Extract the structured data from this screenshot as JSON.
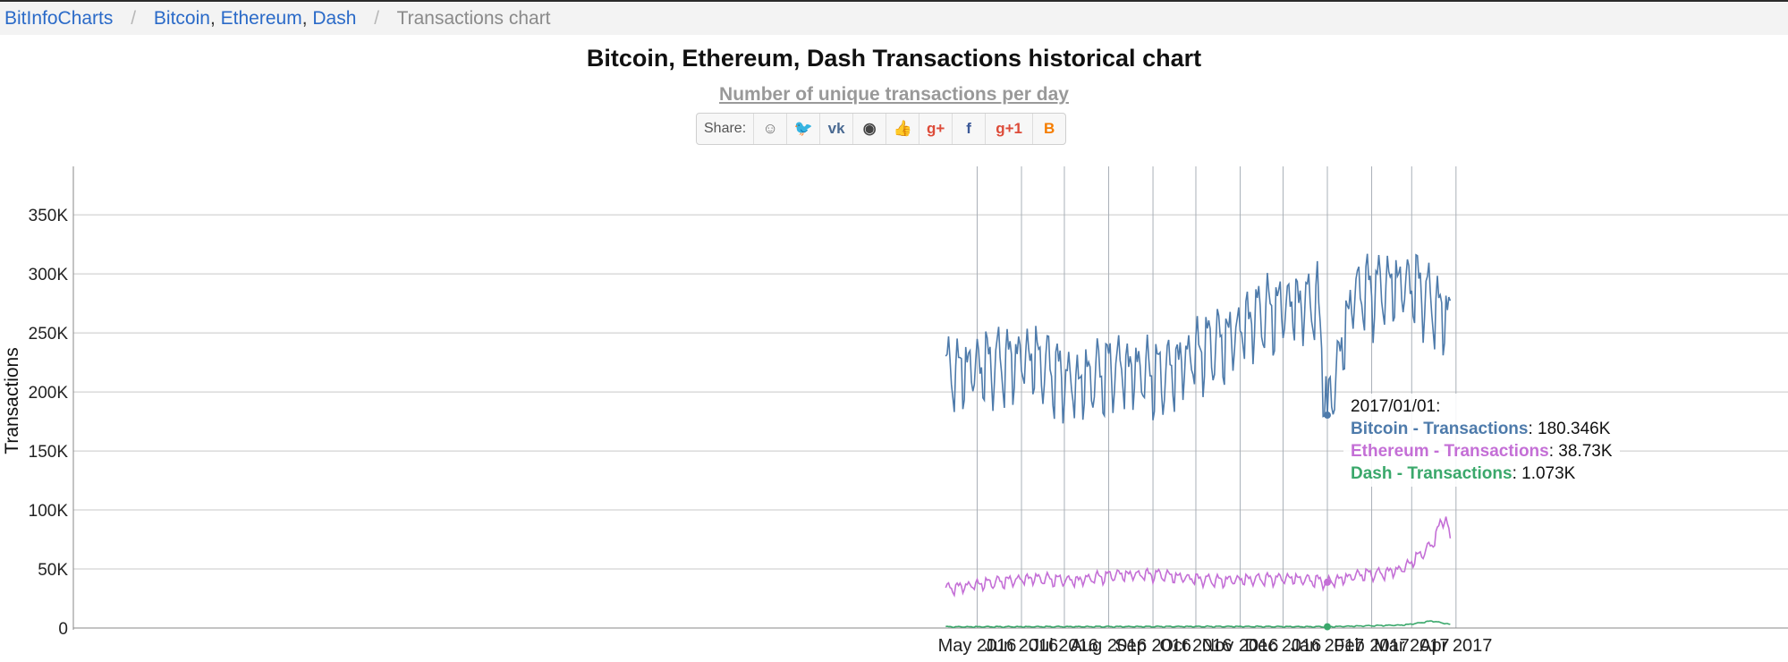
{
  "breadcrumb": {
    "home": "BitInfoCharts",
    "crumb_bitcoin": "Bitcoin",
    "crumb_ethereum": "Ethereum",
    "crumb_dash": "Dash",
    "comma": ",",
    "separator": "/",
    "current": "Transactions chart"
  },
  "share": {
    "label": "Share:",
    "buttons": [
      {
        "name": "reddit",
        "glyph": "☺",
        "color": "#666666"
      },
      {
        "name": "twitter",
        "glyph": "🐦",
        "color": "#55acee"
      },
      {
        "name": "vk",
        "glyph": "vk",
        "color": "#4a6a92"
      },
      {
        "name": "weibo",
        "glyph": "◉",
        "color": "#444444"
      },
      {
        "name": "like",
        "glyph": "👍",
        "color": "#4a6fa5"
      },
      {
        "name": "googleplus",
        "glyph": "g+",
        "color": "#dd4b39"
      },
      {
        "name": "facebook",
        "glyph": "f",
        "color": "#3b5998"
      },
      {
        "name": "plusone",
        "glyph": "g+1",
        "color": "#dd4b39"
      },
      {
        "name": "blogger",
        "glyph": "B",
        "color": "#f57d00"
      }
    ]
  },
  "colors": {
    "bitcoin": "#4e7bab",
    "ethereum": "#c46fd6",
    "dash": "#3aa86b",
    "grid": "#c8c8c8"
  },
  "tooltip": {
    "date": "2017/01/01:",
    "rows": [
      {
        "label": "Bitcoin - Transactions",
        "value": "180.346K"
      },
      {
        "label": "Ethereum - Transactions",
        "value": "38.73K"
      },
      {
        "label": "Dash - Transactions",
        "value": "1.073K"
      }
    ]
  },
  "chart_data": {
    "type": "line",
    "title": "Bitcoin, Ethereum, Dash Transactions historical chart",
    "subtitle": "Number of unique transactions per day",
    "xlabel": "",
    "ylabel": "Transactions",
    "xrange_days": [
      0,
      353
    ],
    "ylim": [
      0,
      385000
    ],
    "yticks": [
      0,
      50000,
      100000,
      150000,
      200000,
      250000,
      300000,
      350000
    ],
    "ytick_labels": [
      "0",
      "50K",
      "100K",
      "150K",
      "200K",
      "250K",
      "300K",
      "350K"
    ],
    "xticks": [
      {
        "label": "May 2016",
        "day": 22
      },
      {
        "label": "Jun 2016",
        "day": 53
      },
      {
        "label": "Jul 2016",
        "day": 83
      },
      {
        "label": "Aug 2016",
        "day": 114
      },
      {
        "label": "Sep 2016",
        "day": 145
      },
      {
        "label": "Oct 2016",
        "day": 175
      },
      {
        "label": "Nov 2016",
        "day": 206
      },
      {
        "label": "Dec 2016",
        "day": 236
      },
      {
        "label": "Jan 2017",
        "day": 267
      },
      {
        "label": "Feb 2017",
        "day": 298
      },
      {
        "label": "Mar 2017",
        "day": 326
      },
      {
        "label": "Apr 2017",
        "day": 357
      }
    ],
    "highlight_day": 267,
    "series": [
      {
        "name": "Bitcoin - Transactions",
        "color": "#4e7bab",
        "anchors": [
          [
            0,
            215000
          ],
          [
            30,
            222000
          ],
          [
            60,
            228000
          ],
          [
            90,
            205000
          ],
          [
            120,
            220000
          ],
          [
            150,
            212000
          ],
          [
            180,
            235000
          ],
          [
            200,
            245000
          ],
          [
            215,
            262000
          ],
          [
            240,
            272000
          ],
          [
            260,
            275000
          ],
          [
            267,
            180346
          ],
          [
            285,
            282000
          ],
          [
            300,
            285000
          ],
          [
            315,
            290000
          ],
          [
            330,
            288000
          ],
          [
            345,
            268000
          ],
          [
            353,
            262000
          ]
        ],
        "weekly_amplitude": 28000
      },
      {
        "name": "Ethereum - Transactions",
        "color": "#c46fd6",
        "anchors": [
          [
            0,
            33000
          ],
          [
            30,
            38000
          ],
          [
            60,
            42000
          ],
          [
            90,
            40000
          ],
          [
            120,
            45000
          ],
          [
            150,
            45000
          ],
          [
            170,
            42000
          ],
          [
            190,
            40000
          ],
          [
            210,
            41000
          ],
          [
            240,
            42000
          ],
          [
            260,
            40000
          ],
          [
            267,
            38730
          ],
          [
            290,
            45000
          ],
          [
            305,
            46000
          ],
          [
            320,
            50000
          ],
          [
            330,
            60000
          ],
          [
            340,
            70000
          ],
          [
            346,
            88000
          ],
          [
            350,
            93000
          ],
          [
            353,
            75000
          ]
        ],
        "weekly_amplitude": 4500
      },
      {
        "name": "Dash - Transactions",
        "color": "#3aa86b",
        "anchors": [
          [
            0,
            1000
          ],
          [
            200,
            1300
          ],
          [
            267,
            1073
          ],
          [
            320,
            2500
          ],
          [
            330,
            4000
          ],
          [
            340,
            6000
          ],
          [
            353,
            3000
          ]
        ],
        "weekly_amplitude": 400
      }
    ]
  }
}
